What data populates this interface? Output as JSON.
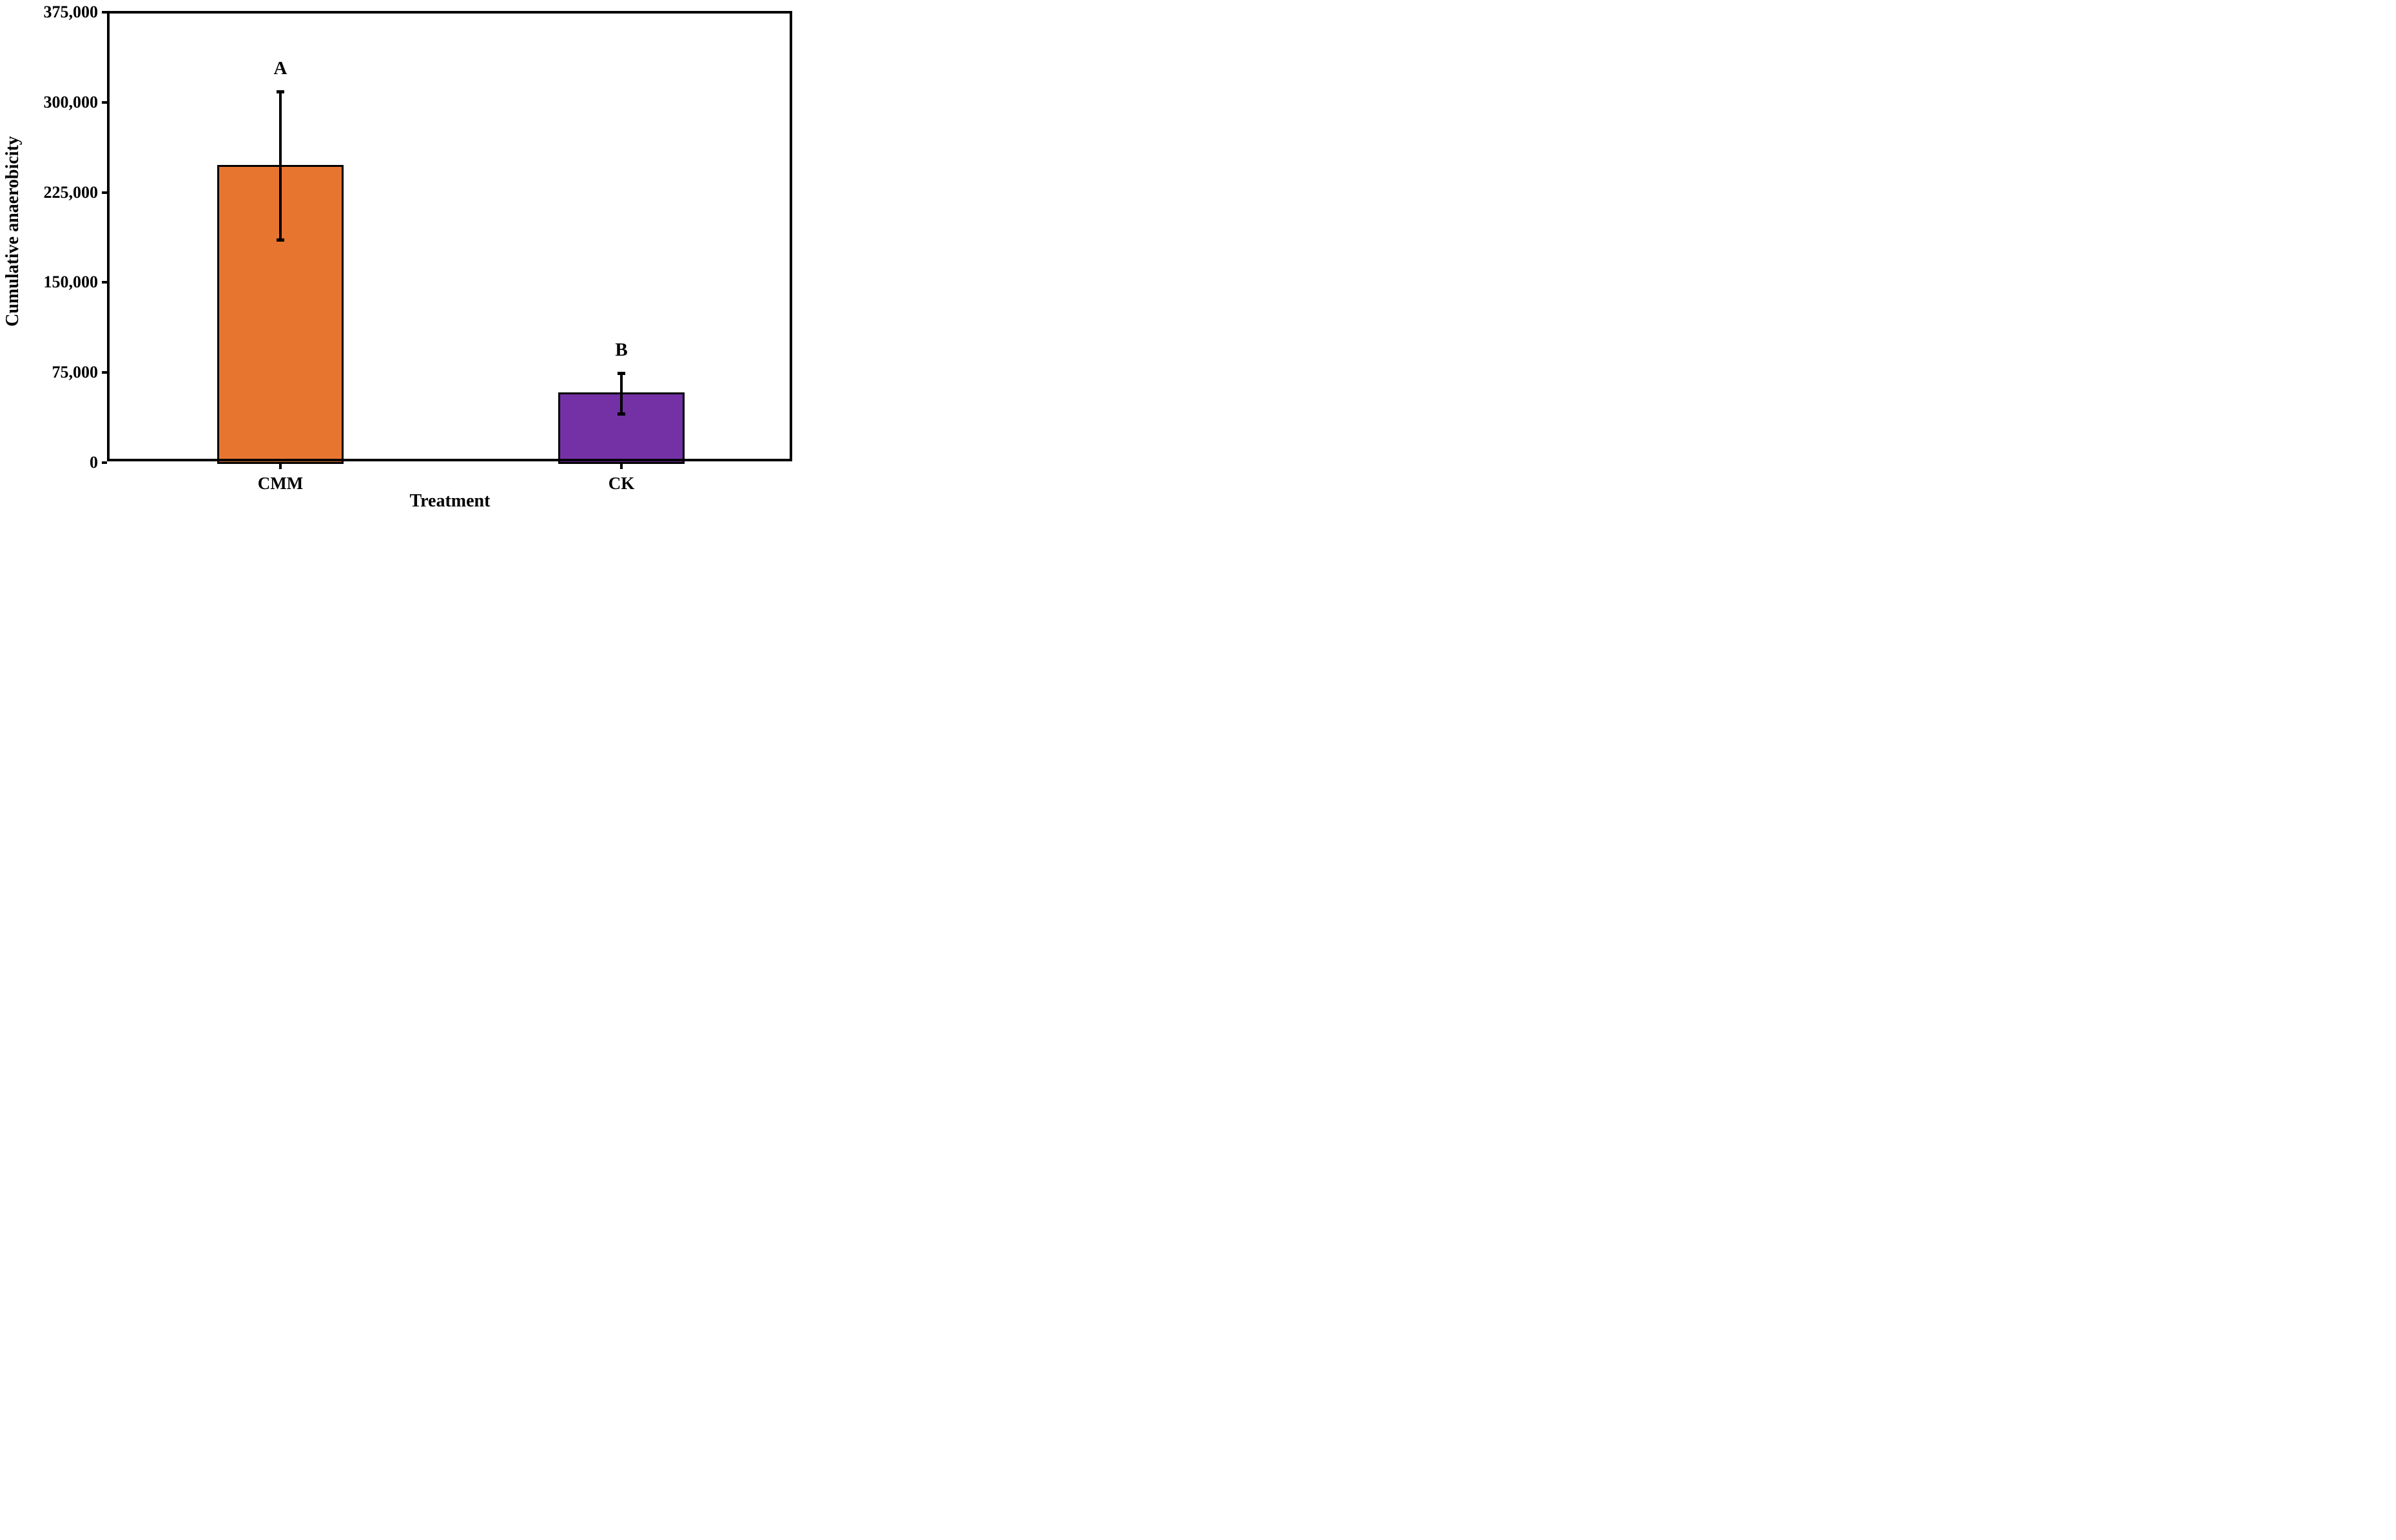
{
  "chart_data": {
    "type": "bar",
    "title": "",
    "ylabel": "Cumulative anaerobicity",
    "xlabel": "Treatment",
    "categories": [
      "CMM",
      "CK"
    ],
    "values": [
      247000,
      57500
    ],
    "errors": [
      62000,
      17000
    ],
    "significance_letters": [
      "A",
      "B"
    ],
    "bar_colors": [
      "#E8752F",
      "#7331A5"
    ],
    "bar_edge_color": "#000000",
    "ylim": [
      0,
      375000
    ],
    "yticks": [
      0,
      75000,
      150000,
      225000,
      300000,
      375000
    ],
    "ytick_labels": [
      "0",
      "75,000",
      "150,000",
      "225,000",
      "300,000",
      "375,000"
    ],
    "grid": false,
    "frame": true,
    "legend_position": "none"
  }
}
